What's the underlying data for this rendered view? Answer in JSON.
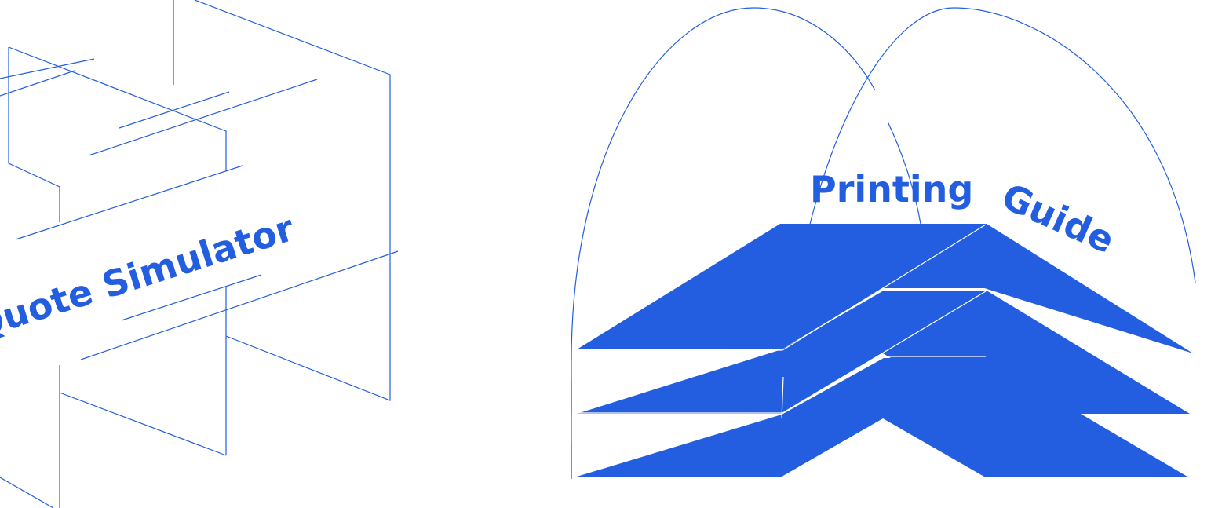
{
  "colors": {
    "accent": "#235ee0",
    "background": "#ffffff"
  },
  "quote_simulator": {
    "label": "Quote Simulator",
    "icon": "wireframe-boxes-icon"
  },
  "printing_guide": {
    "label_word_1": "Printing",
    "label_word_2": "Guide",
    "icon": "stacked-paper-arches-icon"
  }
}
